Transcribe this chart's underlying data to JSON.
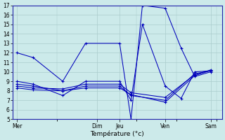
{
  "title": "Température (°c)",
  "bg_color": "#cceaea",
  "grid_color": "#aacccc",
  "line_color": "#0000bb",
  "spine_color": "#2222aa",
  "ylim": [
    5,
    17
  ],
  "yticks": [
    5,
    6,
    7,
    8,
    9,
    10,
    11,
    12,
    13,
    14,
    15,
    16,
    17
  ],
  "day_labels": [
    "Mer",
    "Dim",
    "Jeu",
    "Ven",
    "Sam"
  ],
  "day_positions": [
    0.0,
    3.5,
    4.5,
    6.5,
    8.5
  ],
  "xlim": [
    -0.2,
    9.0
  ],
  "series": [
    {
      "x": [
        0.0,
        0.7,
        2.0,
        3.0,
        4.5,
        5.0,
        5.5,
        6.5,
        7.2,
        7.8,
        8.5
      ],
      "y": [
        12.0,
        11.5,
        9.0,
        13.0,
        13.0,
        5.0,
        17.0,
        16.7,
        12.5,
        9.5,
        10.0
      ]
    },
    {
      "x": [
        0.0,
        0.7,
        2.0,
        3.0,
        4.5,
        5.0,
        5.5,
        6.5,
        7.2,
        7.8,
        8.5
      ],
      "y": [
        9.0,
        8.7,
        7.5,
        9.0,
        9.0,
        7.0,
        15.0,
        8.5,
        7.2,
        10.0,
        10.1
      ]
    },
    {
      "x": [
        0.0,
        0.7,
        2.0,
        3.0,
        4.5,
        5.0,
        6.5,
        7.8,
        8.5
      ],
      "y": [
        8.7,
        8.5,
        8.0,
        8.5,
        8.5,
        7.5,
        7.0,
        9.8,
        10.1
      ]
    },
    {
      "x": [
        0.0,
        0.7,
        2.0,
        3.0,
        4.5,
        5.0,
        6.5,
        7.8,
        8.5
      ],
      "y": [
        8.5,
        8.3,
        8.2,
        8.7,
        8.7,
        7.8,
        7.3,
        9.7,
        10.2
      ]
    },
    {
      "x": [
        0.0,
        0.7,
        2.0,
        3.0,
        4.5,
        5.0,
        6.5,
        7.8,
        8.5
      ],
      "y": [
        8.3,
        8.1,
        8.0,
        8.3,
        8.3,
        7.6,
        6.8,
        9.6,
        10.15
      ]
    }
  ]
}
